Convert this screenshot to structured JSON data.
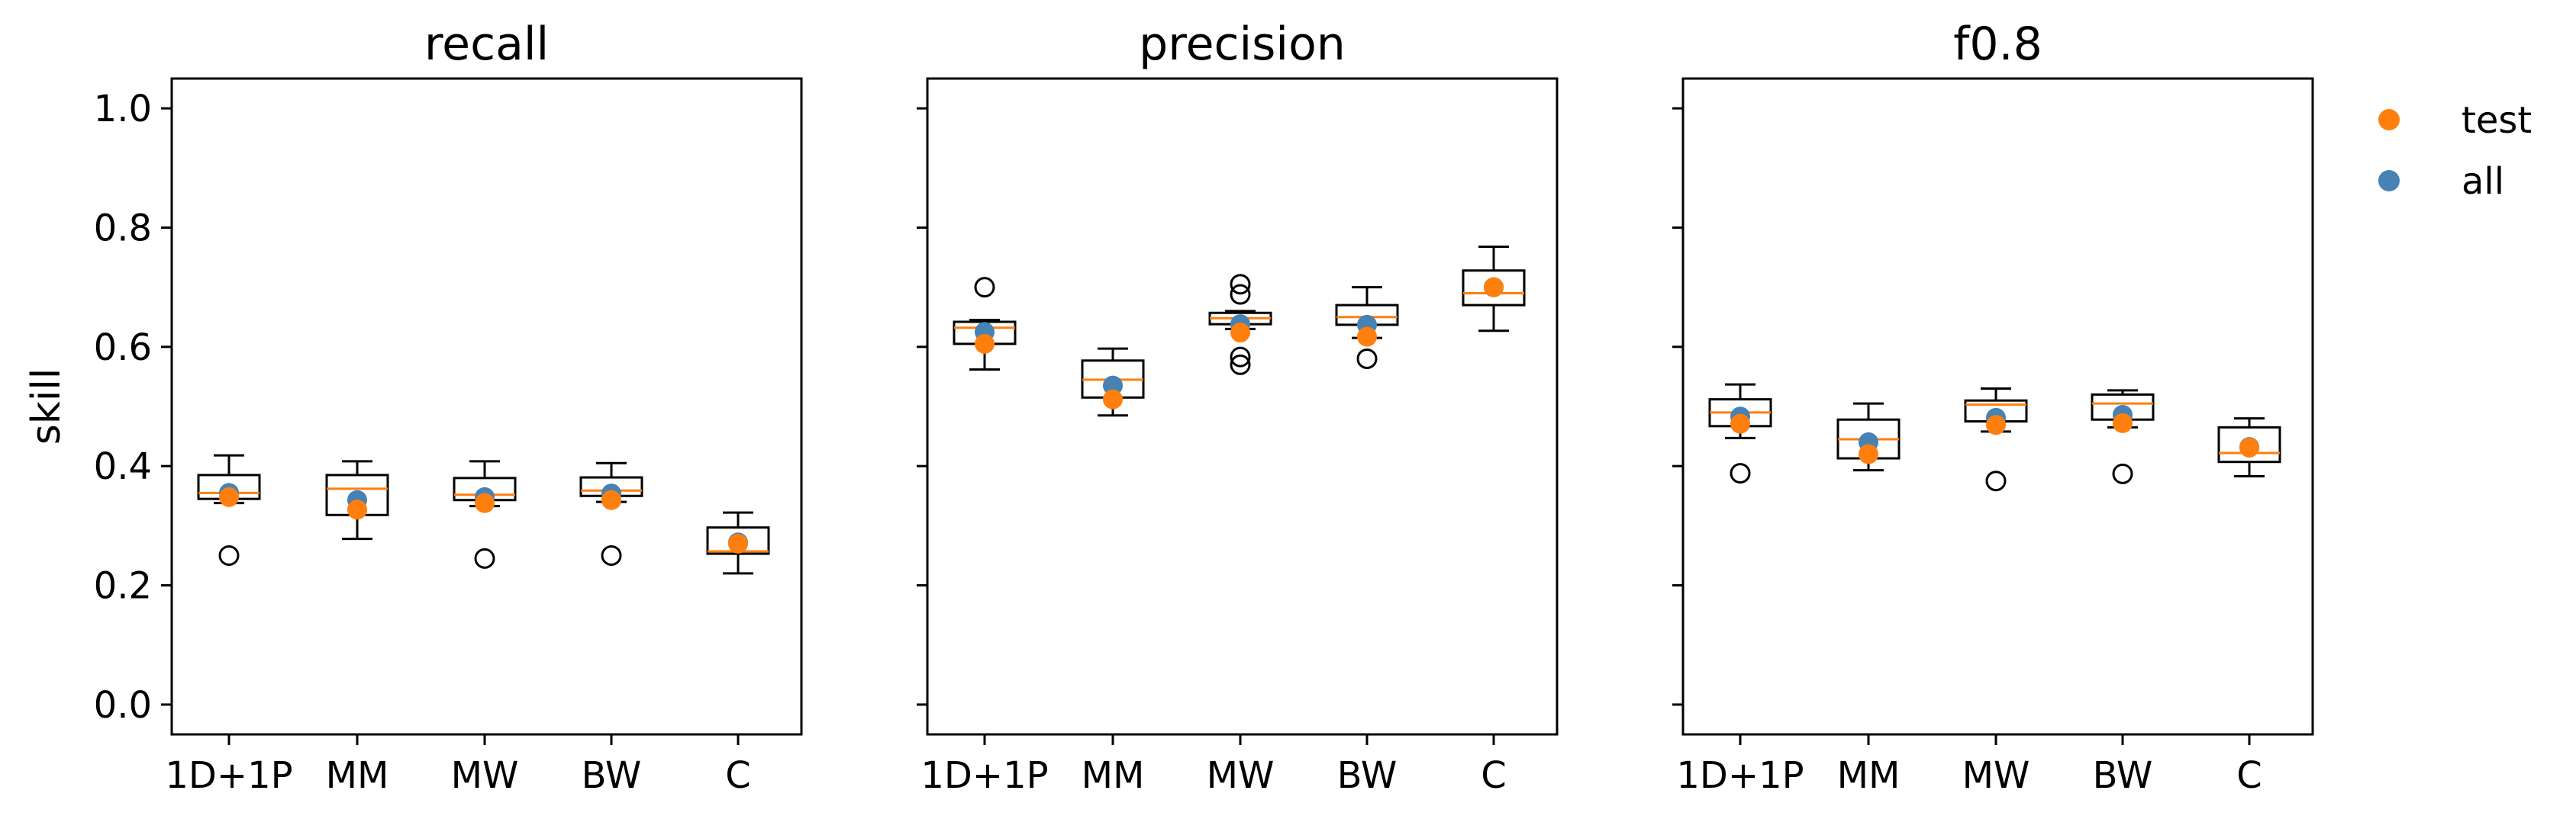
{
  "chart_data": [
    {
      "type": "box",
      "title": "recall",
      "ylabel": "skill",
      "ylim": [
        -0.05,
        1.05
      ],
      "yticks": [
        0.0,
        0.2,
        0.4,
        0.6,
        0.8,
        1.0
      ],
      "ytick_labels": [
        "0.0",
        "0.2",
        "0.4",
        "0.6",
        "0.8",
        "1.0"
      ],
      "categories": [
        "1D+1P",
        "MM",
        "MW",
        "BW",
        "C"
      ],
      "boxes": [
        {
          "whislo": 0.338,
          "q1": 0.345,
          "med": 0.355,
          "q3": 0.385,
          "whishi": 0.418,
          "fliers": [
            0.25
          ]
        },
        {
          "whislo": 0.278,
          "q1": 0.318,
          "med": 0.362,
          "q3": 0.385,
          "whishi": 0.408,
          "fliers": []
        },
        {
          "whislo": 0.333,
          "q1": 0.343,
          "med": 0.352,
          "q3": 0.38,
          "whishi": 0.408,
          "fliers": [
            0.245
          ]
        },
        {
          "whislo": 0.34,
          "q1": 0.35,
          "med": 0.359,
          "q3": 0.381,
          "whishi": 0.405,
          "fliers": [
            0.25
          ]
        },
        {
          "whislo": 0.22,
          "q1": 0.253,
          "med": 0.257,
          "q3": 0.297,
          "whishi": 0.322,
          "fliers": []
        }
      ],
      "series": [
        {
          "name": "all",
          "values": [
            0.355,
            0.343,
            0.348,
            0.354,
            0.272
          ]
        },
        {
          "name": "test",
          "values": [
            0.348,
            0.327,
            0.338,
            0.343,
            0.27
          ]
        }
      ]
    },
    {
      "type": "box",
      "title": "precision",
      "ylabel": "",
      "ylim": [
        -0.05,
        1.05
      ],
      "yticks": [
        0.0,
        0.2,
        0.4,
        0.6,
        0.8,
        1.0
      ],
      "ytick_labels": [],
      "categories": [
        "1D+1P",
        "MM",
        "MW",
        "BW",
        "C"
      ],
      "boxes": [
        {
          "whislo": 0.562,
          "q1": 0.605,
          "med": 0.632,
          "q3": 0.642,
          "whishi": 0.645,
          "fliers": [
            0.7
          ]
        },
        {
          "whislo": 0.485,
          "q1": 0.515,
          "med": 0.545,
          "q3": 0.577,
          "whishi": 0.597,
          "fliers": []
        },
        {
          "whislo": 0.63,
          "q1": 0.638,
          "med": 0.648,
          "q3": 0.657,
          "whishi": 0.66,
          "fliers": [
            0.705,
            0.688,
            0.583,
            0.57
          ]
        },
        {
          "whislo": 0.615,
          "q1": 0.637,
          "med": 0.65,
          "q3": 0.67,
          "whishi": 0.7,
          "fliers": [
            0.58
          ]
        },
        {
          "whislo": 0.627,
          "q1": 0.67,
          "med": 0.69,
          "q3": 0.728,
          "whishi": 0.768,
          "fliers": []
        }
      ],
      "series": [
        {
          "name": "all",
          "values": [
            0.625,
            0.535,
            0.638,
            0.637,
            0.7
          ]
        },
        {
          "name": "test",
          "values": [
            0.605,
            0.512,
            0.624,
            0.617,
            0.7
          ]
        }
      ]
    },
    {
      "type": "box",
      "title": "f0.8",
      "ylabel": "",
      "ylim": [
        -0.05,
        1.05
      ],
      "yticks": [
        0.0,
        0.2,
        0.4,
        0.6,
        0.8,
        1.0
      ],
      "ytick_labels": [],
      "categories": [
        "1D+1P",
        "MM",
        "MW",
        "BW",
        "C"
      ],
      "boxes": [
        {
          "whislo": 0.447,
          "q1": 0.467,
          "med": 0.49,
          "q3": 0.512,
          "whishi": 0.537,
          "fliers": [
            0.388
          ]
        },
        {
          "whislo": 0.393,
          "q1": 0.413,
          "med": 0.445,
          "q3": 0.478,
          "whishi": 0.505,
          "fliers": []
        },
        {
          "whislo": 0.458,
          "q1": 0.475,
          "med": 0.503,
          "q3": 0.51,
          "whishi": 0.53,
          "fliers": [
            0.375
          ]
        },
        {
          "whislo": 0.465,
          "q1": 0.478,
          "med": 0.505,
          "q3": 0.52,
          "whishi": 0.527,
          "fliers": [
            0.387
          ]
        },
        {
          "whislo": 0.383,
          "q1": 0.407,
          "med": 0.422,
          "q3": 0.465,
          "whishi": 0.48,
          "fliers": []
        }
      ],
      "series": [
        {
          "name": "all",
          "values": [
            0.483,
            0.44,
            0.481,
            0.486,
            0.432
          ]
        },
        {
          "name": "test",
          "values": [
            0.471,
            0.42,
            0.469,
            0.472,
            0.431
          ]
        }
      ]
    }
  ],
  "legend": {
    "placement": "outside-right-top",
    "items": [
      {
        "label": "test",
        "color": "#ff7f0e"
      },
      {
        "label": "all",
        "color": "#4682b4"
      }
    ]
  },
  "colors": {
    "test": "#ff7f0e",
    "all": "#4682b4",
    "median": "#ff7f0e",
    "box": "#000000"
  }
}
